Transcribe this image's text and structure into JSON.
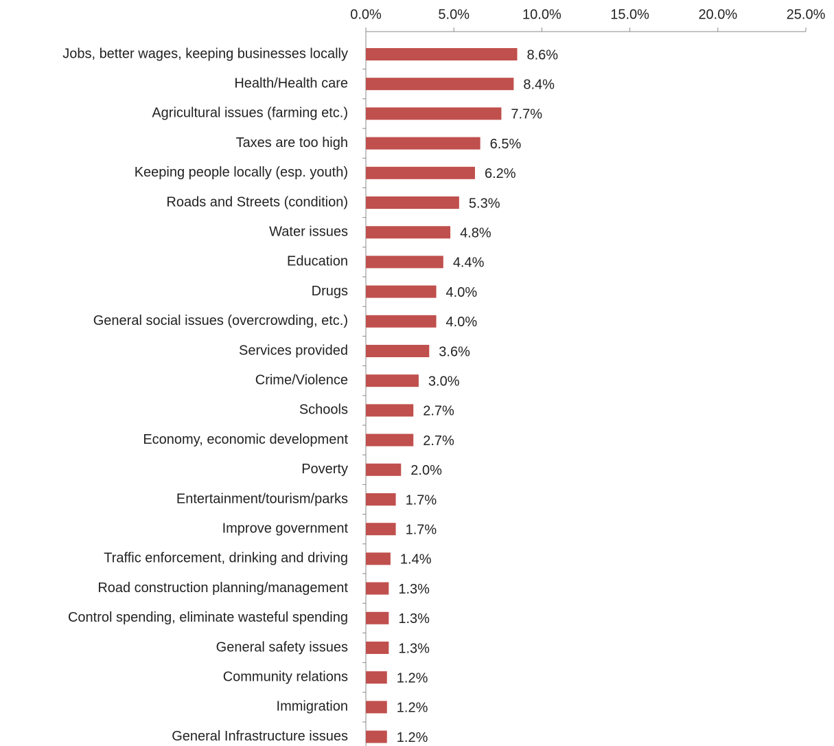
{
  "chart_data": {
    "type": "bar",
    "orientation": "horizontal",
    "color": "#c0504d",
    "categories": [
      "Jobs, better wages, keeping businesses locally",
      "Health/Health care",
      "Agricultural issues (farming etc.)",
      "Taxes are too high",
      "Keeping people locally (esp. youth)",
      "Roads and Streets (condition)",
      "Water issues",
      "Education",
      "Drugs",
      "General social issues (overcrowding, etc.)",
      "Services provided",
      "Crime/Violence",
      "Schools",
      "Economy, economic development",
      "Poverty",
      "Entertainment/tourism/parks",
      "Improve government",
      "Traffic enforcement, drinking and driving",
      "Road construction planning/management",
      "Control spending, eliminate wasteful spending",
      "General safety issues",
      "Community relations",
      "Immigration",
      "General Infrastructure issues"
    ],
    "values": [
      8.6,
      8.4,
      7.7,
      6.5,
      6.2,
      5.3,
      4.8,
      4.4,
      4.0,
      4.0,
      3.6,
      3.0,
      2.7,
      2.7,
      2.0,
      1.7,
      1.7,
      1.4,
      1.3,
      1.3,
      1.3,
      1.2,
      1.2,
      1.2
    ],
    "value_labels": [
      "8.6%",
      "8.4%",
      "7.7%",
      "6.5%",
      "6.2%",
      "5.3%",
      "4.8%",
      "4.4%",
      "4.0%",
      "4.0%",
      "3.6%",
      "3.0%",
      "2.7%",
      "2.7%",
      "2.0%",
      "1.7%",
      "1.7%",
      "1.4%",
      "1.3%",
      "1.3%",
      "1.3%",
      "1.2%",
      "1.2%",
      "1.2%"
    ],
    "xlim": [
      0,
      25
    ],
    "xticks": [
      {
        "value": 0,
        "label": "0.0%"
      },
      {
        "value": 5,
        "label": "5.0%"
      },
      {
        "value": 10,
        "label": "10.0%"
      },
      {
        "value": 15,
        "label": "15.0%"
      },
      {
        "value": 20,
        "label": "20.0%"
      },
      {
        "value": 25,
        "label": "25.0%"
      }
    ]
  }
}
